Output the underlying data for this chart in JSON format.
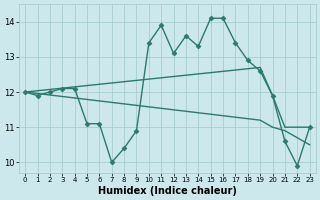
{
  "series": [
    {
      "x": [
        0,
        1,
        2,
        3,
        4,
        5,
        6,
        7,
        8,
        9,
        10,
        11,
        12,
        13,
        14,
        15,
        16,
        17,
        18,
        19,
        20,
        21,
        22,
        23
      ],
      "y": [
        12.0,
        11.9,
        12.0,
        12.1,
        12.1,
        11.1,
        11.1,
        10.0,
        10.4,
        10.9,
        13.4,
        13.9,
        13.1,
        13.6,
        13.3,
        14.1,
        14.1,
        13.4,
        12.9,
        12.6,
        11.9,
        10.6,
        9.9,
        11.0
      ],
      "color": "#2a7a6e",
      "marker": "D",
      "markersize": 2.5,
      "linewidth": 1.0
    },
    {
      "x": [
        0,
        19,
        20,
        21,
        22,
        23
      ],
      "y": [
        12.0,
        12.7,
        11.9,
        11.0,
        11.0,
        11.0
      ],
      "color": "#2a7a6e",
      "marker": null,
      "markersize": 0,
      "linewidth": 1.0
    },
    {
      "x": [
        0,
        19,
        20,
        21,
        22,
        23
      ],
      "y": [
        12.0,
        11.2,
        11.0,
        10.9,
        10.7,
        10.5
      ],
      "color": "#2a7a6e",
      "marker": null,
      "markersize": 0,
      "linewidth": 1.0
    }
  ],
  "xlabel": "Humidex (Indice chaleur)",
  "xlim": [
    -0.5,
    23.5
  ],
  "ylim": [
    9.7,
    14.5
  ],
  "yticks": [
    10,
    11,
    12,
    13,
    14
  ],
  "xticks": [
    0,
    1,
    2,
    3,
    4,
    5,
    6,
    7,
    8,
    9,
    10,
    11,
    12,
    13,
    14,
    15,
    16,
    17,
    18,
    19,
    20,
    21,
    22,
    23
  ],
  "xtick_fontsize": 5.0,
  "ytick_fontsize": 6.0,
  "xlabel_fontsize": 7.0,
  "bg_color": "#cce8ec",
  "grid_color": "#a0c8cc",
  "line_color": "#2a7a6e"
}
